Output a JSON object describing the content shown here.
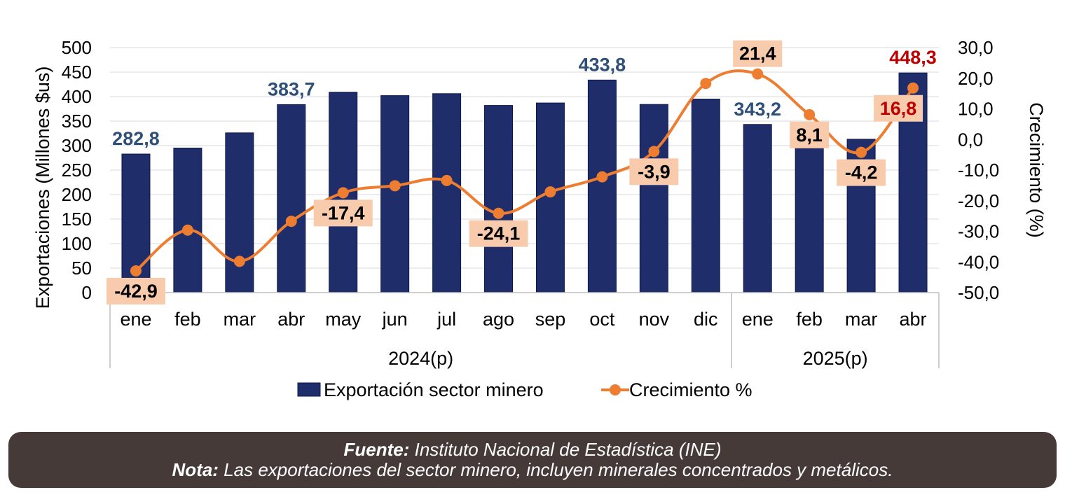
{
  "chart_data": {
    "type": "bar+line",
    "categories": [
      "ene",
      "feb",
      "mar",
      "abr",
      "may",
      "jun",
      "jul",
      "ago",
      "sep",
      "oct",
      "nov",
      "dic",
      "ene",
      "feb",
      "mar",
      "abr"
    ],
    "groups": [
      {
        "label": "2024(p)",
        "count": 12
      },
      {
        "label": "2025(p)",
        "count": 4
      }
    ],
    "series": [
      {
        "name": "Exportación sector minero",
        "type": "bar",
        "axis": "left",
        "color": "#1f2d6b",
        "values": [
          282.8,
          295,
          326,
          383.7,
          409,
          402,
          406,
          382,
          387,
          433.8,
          384,
          395,
          343.2,
          305,
          313,
          448.3
        ]
      },
      {
        "name": "Crecimiento %",
        "type": "line",
        "axis": "right",
        "color": "#ed7d31",
        "values": [
          -42.9,
          -29.6,
          -39.8,
          -26.7,
          -17.4,
          -15.1,
          -13.4,
          -24.1,
          -17.1,
          -12.2,
          -3.9,
          18.3,
          21.4,
          8.1,
          -4.2,
          16.8
        ]
      }
    ],
    "bar_labels": [
      {
        "index": 0,
        "text": "282,8",
        "color": "#2e4f78"
      },
      {
        "index": 3,
        "text": "383,7",
        "color": "#2e4f78"
      },
      {
        "index": 9,
        "text": "433,8",
        "color": "#2e4f78"
      },
      {
        "index": 12,
        "text": "343,2",
        "color": "#2e4f78"
      },
      {
        "index": 15,
        "text": "448,3",
        "color": "#c00000"
      }
    ],
    "line_labels": [
      {
        "index": 0,
        "text": "-42,9",
        "color": "#000000",
        "pos": "below"
      },
      {
        "index": 4,
        "text": "-17,4",
        "color": "#000000",
        "pos": "below"
      },
      {
        "index": 7,
        "text": "-24,1",
        "color": "#000000",
        "pos": "below"
      },
      {
        "index": 10,
        "text": "-3,9",
        "color": "#000000",
        "pos": "below"
      },
      {
        "index": 12,
        "text": "21,4",
        "color": "#000000",
        "pos": "above"
      },
      {
        "index": 13,
        "text": "8,1",
        "color": "#000000",
        "pos": "below"
      },
      {
        "index": 14,
        "text": "-4,2",
        "color": "#000000",
        "pos": "below"
      },
      {
        "index": 15,
        "text": "16,8",
        "color": "#c00000",
        "pos": "left-below"
      }
    ],
    "label_bg": "#f8cbad",
    "y_left": {
      "label": "Exportaciones (Millones $us)",
      "min": 0,
      "max": 500,
      "step": 50,
      "ticks": [
        "0",
        "50",
        "100",
        "150",
        "200",
        "250",
        "300",
        "350",
        "400",
        "450",
        "500"
      ]
    },
    "y_right": {
      "label": "Crecimiento (%)",
      "min": -50,
      "max": 30,
      "step": 10,
      "ticks": [
        "-50,0",
        "-40,0",
        "-30,0",
        "-20,0",
        "-10,0",
        "0,0",
        "10,0",
        "20,0",
        "30,0"
      ]
    },
    "grid": true,
    "legend_position": "bottom"
  },
  "footer": {
    "source_label": "Fuente:",
    "source_text": " Instituto Nacional de Estadística (INE)",
    "note_label": "Nota:",
    "note_text": " Las exportaciones del sector minero, incluyen minerales concentrados y metálicos."
  }
}
